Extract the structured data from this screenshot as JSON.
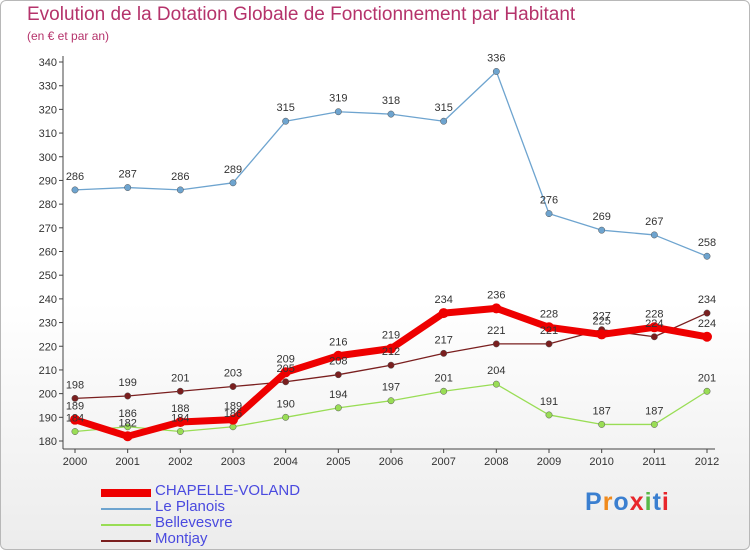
{
  "title": "Evolution de la Dotation Globale de Fonctionnement par Habitant",
  "subtitle": "(en € et par an)",
  "logo": "Proxiti",
  "chart_data": {
    "type": "line",
    "x": [
      "2000",
      "2001",
      "2002",
      "2003",
      "2004",
      "2005",
      "2006",
      "2007",
      "2008",
      "2009",
      "2010",
      "2011",
      "2012"
    ],
    "ylim": [
      180,
      340
    ],
    "yticks": [
      180,
      190,
      200,
      210,
      220,
      230,
      240,
      250,
      260,
      270,
      280,
      290,
      300,
      310,
      320,
      330,
      340
    ],
    "grid": false,
    "legend_position": "bottom-left",
    "series": [
      {
        "name": "CHAPELLE-VOLAND",
        "color": "#ee0000",
        "values": [
          189,
          182,
          188,
          189,
          209,
          216,
          219,
          234,
          236,
          228,
          225,
          228,
          224
        ]
      },
      {
        "name": "Le Planois",
        "color": "#6ea4cf",
        "values": [
          286,
          287,
          286,
          289,
          315,
          319,
          318,
          315,
          336,
          276,
          269,
          267,
          258
        ]
      },
      {
        "name": "Bellevesvre",
        "color": "#99dd55",
        "values": [
          184,
          186,
          184,
          186,
          190,
          194,
          197,
          201,
          204,
          191,
          187,
          187,
          201
        ]
      },
      {
        "name": "Montjay",
        "color": "#7a1f1f",
        "values": [
          198,
          199,
          201,
          203,
          205,
          208,
          212,
          217,
          221,
          221,
          227,
          224,
          234
        ]
      }
    ]
  }
}
